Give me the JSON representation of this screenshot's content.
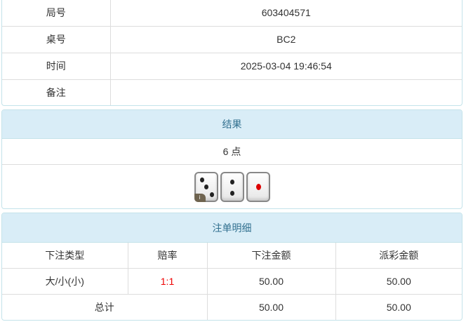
{
  "info": [
    {
      "label": "局号",
      "value": "603404571"
    },
    {
      "label": "桌号",
      "value": "BC2"
    },
    {
      "label": "时间",
      "value": "2025-03-04 19:46:54"
    },
    {
      "label": "备注",
      "value": ""
    }
  ],
  "result": {
    "title": "结果",
    "points": "6 点",
    "dice": [
      3,
      2,
      1
    ],
    "info_badge": "i"
  },
  "bets": {
    "title": "注单明细",
    "headers": [
      "下注类型",
      "赔率",
      "下注金额",
      "派彩金额"
    ],
    "rows": [
      {
        "type": "大/小(小)",
        "odds": "1:1",
        "amount": "50.00",
        "payout": "50.00"
      }
    ],
    "total": {
      "label": "总计",
      "amount": "50.00",
      "payout": "50.00"
    }
  },
  "colors": {
    "header_bg": "#d9edf7",
    "header_text": "#31708f",
    "odds": "#e00000"
  }
}
